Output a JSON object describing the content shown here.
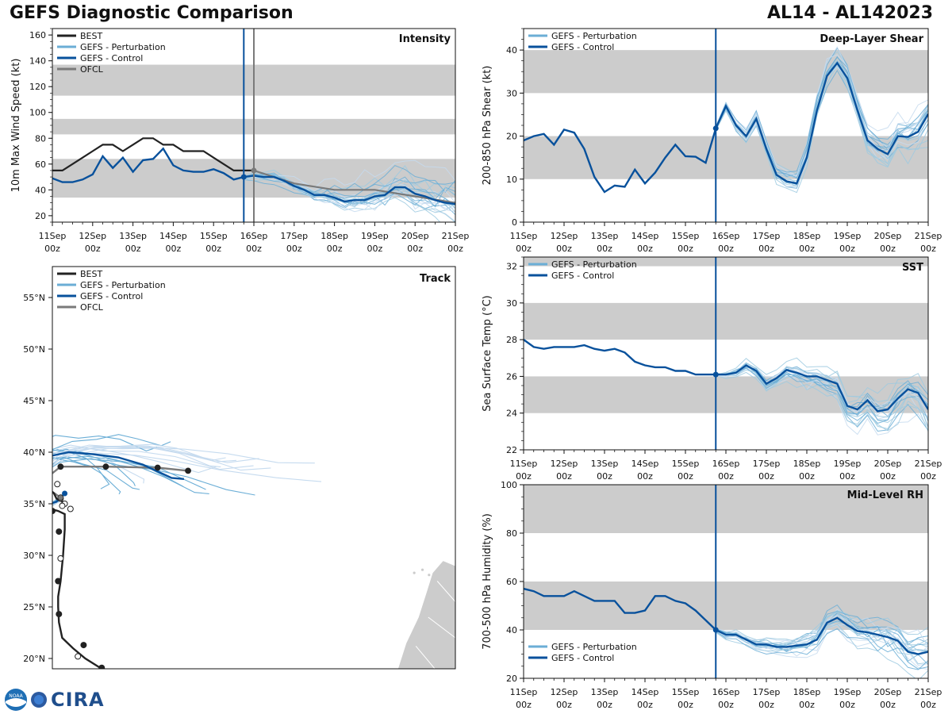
{
  "header": {
    "left_title": "GEFS Diagnostic Comparison",
    "right_title": "AL14 - AL142023"
  },
  "logo": {
    "text": "CIRA",
    "emblem_text": "NOAA"
  },
  "colors": {
    "best": "#222222",
    "perturbation": "#6baed6",
    "control": "#08519c",
    "ofcl": "#7a7a7a",
    "band": "#cccccc",
    "land": "#cccccc"
  },
  "time_ticks": [
    "11Sep",
    "12Sep",
    "13Sep",
    "14Sep",
    "15Sep",
    "16Sep",
    "17Sep",
    "18Sep",
    "19Sep",
    "20Sep",
    "21Sep"
  ],
  "time_subticks": [
    "00z",
    "00z",
    "00z",
    "00z",
    "00z",
    "00z",
    "00z",
    "00z",
    "00z",
    "00z",
    "00z"
  ],
  "chart_data": [
    {
      "id": "intensity",
      "type": "line",
      "panel_title": "Intensity",
      "ylabel": "10m Max Wind Speed (kt)",
      "ylim": [
        15,
        165
      ],
      "xlim": [
        0,
        10
      ],
      "yticks": [
        20,
        40,
        60,
        80,
        100,
        120,
        140,
        160
      ],
      "bands": [
        [
          34,
          64
        ],
        [
          83,
          95
        ],
        [
          113,
          137
        ]
      ],
      "init_day": 4.75,
      "ofcl_line_day": 5.0,
      "legend": [
        "BEST",
        "GEFS - Perturbation",
        "GEFS - Control",
        "OFCL"
      ],
      "legend_pos": "top-left",
      "best": {
        "x": [
          0,
          0.25,
          0.5,
          0.75,
          1.0,
          1.25,
          1.5,
          1.75,
          2.0,
          2.25,
          2.5,
          2.75,
          3.0,
          3.25,
          3.5,
          3.75,
          4.0,
          4.25,
          4.5,
          4.75,
          5.0
        ],
        "y": [
          55,
          55,
          60,
          65,
          70,
          75,
          75,
          70,
          75,
          80,
          80,
          75,
          75,
          70,
          70,
          70,
          65,
          60,
          55,
          55,
          55
        ]
      },
      "control": {
        "x": [
          0,
          0.25,
          0.5,
          0.75,
          1.0,
          1.25,
          1.5,
          1.75,
          2.0,
          2.25,
          2.5,
          2.75,
          3.0,
          3.25,
          3.5,
          3.75,
          4.0,
          4.25,
          4.5,
          4.75,
          5.0,
          5.25,
          5.5,
          5.75,
          6.0,
          6.25,
          6.5,
          6.75,
          7.0,
          7.25,
          7.5,
          7.75,
          8.0,
          8.25,
          8.5,
          8.75,
          9.0,
          9.25,
          9.5,
          9.75,
          10.0
        ],
        "y": [
          49,
          46,
          46,
          48,
          52,
          66,
          57,
          65,
          54,
          63,
          64,
          72,
          59,
          55,
          54,
          54,
          56,
          53,
          48,
          50,
          51,
          50,
          50,
          47,
          43,
          40,
          36,
          36,
          34,
          31,
          32,
          32,
          35,
          36,
          42,
          42,
          37,
          35,
          32,
          30,
          29
        ]
      },
      "ofcl": {
        "x": [
          5.0,
          6.0,
          7.0,
          8.0,
          9.0,
          10.0
        ],
        "y": [
          55,
          45,
          40,
          40,
          35,
          30
        ]
      }
    },
    {
      "id": "shear",
      "type": "line",
      "panel_title": "Deep-Layer Shear",
      "ylabel": "200-850 hPa Shear (kt)",
      "ylim": [
        0,
        45
      ],
      "xlim": [
        0,
        10
      ],
      "yticks": [
        0,
        10,
        20,
        30,
        40
      ],
      "bands": [
        [
          10,
          20
        ],
        [
          30,
          40
        ]
      ],
      "init_day": 4.75,
      "legend": [
        "GEFS - Perturbation",
        "GEFS - Control"
      ],
      "legend_pos": "top-left",
      "control": {
        "x": [
          0,
          0.25,
          0.5,
          0.75,
          1.0,
          1.25,
          1.5,
          1.75,
          2.0,
          2.25,
          2.5,
          2.75,
          3.0,
          3.25,
          3.5,
          3.75,
          4.0,
          4.25,
          4.5,
          4.75,
          5.0,
          5.25,
          5.5,
          5.75,
          6.0,
          6.25,
          6.5,
          6.75,
          7.0,
          7.25,
          7.5,
          7.75,
          8.0,
          8.25,
          8.5,
          8.75,
          9.0,
          9.25,
          9.5,
          9.75,
          10.0
        ],
        "y": [
          19,
          20,
          20.5,
          18,
          21.5,
          20.8,
          17,
          10.5,
          7,
          8.5,
          8.2,
          12.2,
          9,
          11.5,
          15,
          18,
          15.3,
          15.2,
          13.8,
          21.8,
          27,
          22.5,
          20,
          24,
          17,
          11,
          9.5,
          9,
          15,
          26,
          34,
          37,
          33.5,
          26,
          19,
          17,
          15.8,
          20,
          19.8,
          21,
          25.2
        ]
      }
    },
    {
      "id": "sst",
      "type": "line",
      "panel_title": "SST",
      "ylabel": "Sea Surface Temp (°C)",
      "ylim": [
        22,
        32.5
      ],
      "xlim": [
        0,
        10
      ],
      "yticks": [
        22,
        24,
        26,
        28,
        30,
        32
      ],
      "bands": [
        [
          24,
          26
        ],
        [
          28,
          30
        ],
        [
          32,
          32.5
        ]
      ],
      "init_day": 4.75,
      "legend": [
        "GEFS - Perturbation",
        "GEFS - Control"
      ],
      "legend_pos": "top-left",
      "control": {
        "x": [
          0,
          0.25,
          0.5,
          0.75,
          1.0,
          1.25,
          1.5,
          1.75,
          2.0,
          2.25,
          2.5,
          2.75,
          3.0,
          3.25,
          3.5,
          3.75,
          4.0,
          4.25,
          4.5,
          4.75,
          5.0,
          5.25,
          5.5,
          5.75,
          6.0,
          6.25,
          6.5,
          6.75,
          7.0,
          7.25,
          7.5,
          7.75,
          8.0,
          8.25,
          8.5,
          8.75,
          9.0,
          9.25,
          9.5,
          9.75,
          10.0
        ],
        "y": [
          28.0,
          27.6,
          27.5,
          27.6,
          27.6,
          27.6,
          27.7,
          27.5,
          27.4,
          27.5,
          27.3,
          26.8,
          26.6,
          26.5,
          26.5,
          26.3,
          26.3,
          26.1,
          26.1,
          26.1,
          26.1,
          26.2,
          26.6,
          26.3,
          25.6,
          25.9,
          26.35,
          26.2,
          26.0,
          26.0,
          25.8,
          25.6,
          24.4,
          24.2,
          24.7,
          24.1,
          24.2,
          24.8,
          25.3,
          25.1,
          24.2
        ]
      }
    },
    {
      "id": "rh",
      "type": "line",
      "panel_title": "Mid-Level RH",
      "ylabel": "700-500 hPa Humidity (%)",
      "ylim": [
        20,
        100
      ],
      "xlim": [
        0,
        10
      ],
      "yticks": [
        20,
        40,
        60,
        80,
        100
      ],
      "bands": [
        [
          40,
          60
        ],
        [
          80,
          100
        ]
      ],
      "init_day": 4.75,
      "legend": [
        "GEFS - Perturbation",
        "GEFS - Control"
      ],
      "legend_pos": "bottom-left",
      "control": {
        "x": [
          0,
          0.25,
          0.5,
          0.75,
          1.0,
          1.25,
          1.5,
          1.75,
          2.0,
          2.25,
          2.5,
          2.75,
          3.0,
          3.25,
          3.5,
          3.75,
          4.0,
          4.25,
          4.5,
          4.75,
          5.0,
          5.25,
          5.5,
          5.75,
          6.0,
          6.25,
          6.5,
          6.75,
          7.0,
          7.25,
          7.5,
          7.75,
          8.0,
          8.25,
          8.5,
          8.75,
          9.0,
          9.25,
          9.5,
          9.75,
          10.0
        ],
        "y": [
          57,
          56,
          54,
          54,
          54,
          56,
          54,
          52,
          52,
          52,
          47,
          47,
          48,
          54,
          54,
          52,
          51,
          48,
          44,
          40,
          38,
          38,
          36,
          34,
          34,
          33,
          33,
          33.5,
          34,
          36,
          43,
          45,
          42,
          39.5,
          39,
          38,
          37,
          35.5,
          31,
          30,
          31
        ]
      }
    },
    {
      "id": "track",
      "type": "map-track",
      "panel_title": "Track",
      "lon_range": [
        -63,
        -14
      ],
      "lat_range": [
        19,
        58
      ],
      "yticks": [
        20,
        25,
        30,
        35,
        40,
        45,
        50,
        55
      ],
      "ytick_labels": [
        "20°N",
        "25°N",
        "30°N",
        "35°N",
        "40°N",
        "45°N",
        "50°N",
        "55°N"
      ],
      "legend": [
        "BEST",
        "GEFS - Perturbation",
        "GEFS - Control",
        "OFCL"
      ],
      "legend_pos": "top-left",
      "best": {
        "lon": [
          -57,
          -59,
          -60.5,
          -61.8,
          -62.2,
          -62.3,
          -62.3,
          -62.0,
          -61.7,
          -61.5,
          -61.5,
          -62.3,
          -63.2,
          -64.2,
          -65,
          -66.5,
          -67.2,
          -67,
          -65.5,
          -63.5,
          -62.8,
          -62.5,
          -61.8,
          -61.5
        ],
        "lat": [
          19,
          20,
          21,
          22,
          23.5,
          25,
          26,
          27.5,
          30,
          32.5,
          34,
          34.3,
          34.5,
          34.8,
          35.2,
          35.5,
          36.3,
          37,
          37,
          36.5,
          36,
          35.5,
          35.2,
          35.0
        ]
      },
      "best_markers": {
        "lon": [
          -61.5,
          -63.0,
          -64.2,
          -66.5,
          -67.3,
          -65.0,
          -62.0,
          -62.2,
          -62.3,
          -62.2,
          -62.0,
          -59.2,
          -57.0,
          -60.8,
          -61.8,
          -62.4,
          -59.9
        ],
        "lat": [
          35.0,
          34.3,
          34.4,
          35.6,
          37.3,
          36.9,
          35.5,
          32.3,
          27.5,
          24.3,
          29.7,
          21.3,
          19.1,
          34.5,
          34.8,
          36.9,
          20.2
        ],
        "hollow": [
          true,
          false,
          false,
          false,
          true,
          true,
          true,
          false,
          false,
          false,
          true,
          false,
          false,
          true,
          true,
          true,
          true
        ]
      },
      "control": {
        "lon": [
          -61.5,
          -62.5,
          -64,
          -66,
          -66.5,
          -66,
          -64,
          -61,
          -58,
          -55,
          -52,
          -48.5,
          -47
        ],
        "lat": [
          36,
          35.2,
          34.8,
          35,
          36.5,
          38,
          39.5,
          40,
          39.8,
          39.5,
          38.8,
          37.5,
          37.4
        ]
      },
      "ofcl": {
        "lon": [
          -62,
          -64.5,
          -62,
          -56.5,
          -50.2,
          -46.5
        ],
        "lat": [
          35.6,
          37,
          38.6,
          38.6,
          38.5,
          38.2
        ]
      },
      "ofcl_markers": {
        "lon": [
          -62,
          -62,
          -56.5,
          -50.2,
          -46.5
        ],
        "lat": [
          35.6,
          38.6,
          38.6,
          38.5,
          38.2
        ]
      }
    }
  ]
}
